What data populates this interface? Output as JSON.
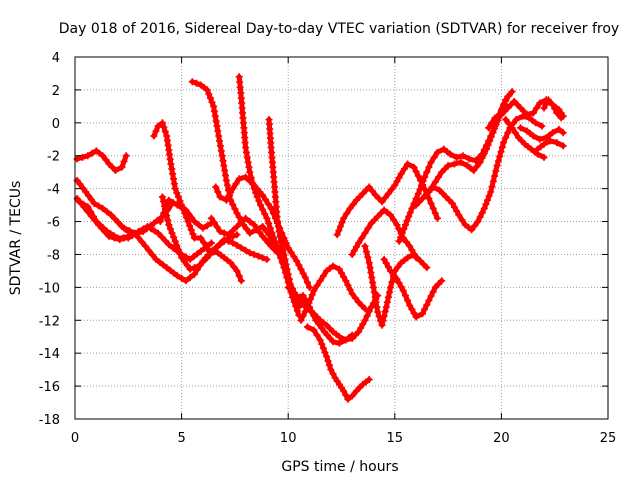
{
  "chart_data": {
    "type": "scatter",
    "title": "Day 018 of 2016, Sidereal Day-to-day VTEC variation (SDTVAR) for receiver froy",
    "xlabel": "GPS time / hours",
    "ylabel": "SDTVAR / TECUs",
    "xlim": [
      0,
      25
    ],
    "ylim": [
      -18,
      4
    ],
    "xticks": [
      0,
      5,
      10,
      15,
      20,
      25
    ],
    "yticks": [
      -18,
      -16,
      -14,
      -12,
      -10,
      -8,
      -6,
      -4,
      -2,
      0,
      2,
      4
    ],
    "grid": true,
    "marker": "plus",
    "color": "#ff0000",
    "series": [
      {
        "x": [
          0.1,
          0.6,
          1.0,
          1.3,
          1.6,
          1.9,
          2.2,
          2.4
        ],
        "y": [
          -2.2,
          -2.0,
          -1.7,
          -2.0,
          -2.5,
          -2.9,
          -2.7,
          -2.0
        ]
      },
      {
        "x": [
          0.1,
          0.5,
          0.9,
          1.3,
          1.7,
          2.2,
          2.7,
          3.2,
          3.7,
          4.2,
          4.5
        ],
        "y": [
          -3.5,
          -4.2,
          -4.9,
          -5.2,
          -5.6,
          -6.3,
          -6.8,
          -6.6,
          -6.1,
          -5.6,
          -5.0
        ]
      },
      {
        "x": [
          0.1,
          0.6,
          1.1,
          1.6,
          2.1,
          2.7,
          3.2
        ],
        "y": [
          -4.6,
          -5.4,
          -6.2,
          -6.9,
          -7.1,
          -6.8,
          -6.5
        ]
      },
      {
        "x": [
          0.2,
          0.6,
          1.0,
          1.5,
          2.0,
          2.5,
          3.0,
          3.4,
          3.9,
          4.4,
          5.0,
          5.4,
          5.9,
          6.4
        ],
        "y": [
          -4.8,
          -5.1,
          -6.0,
          -6.6,
          -7.0,
          -7.0,
          -6.6,
          -6.3,
          -6.7,
          -7.4,
          -8.0,
          -8.3,
          -7.8,
          -7.3
        ]
      },
      {
        "x": [
          3.7,
          3.9,
          4.1,
          4.3,
          4.5,
          4.7,
          5.0,
          5.3,
          5.6,
          5.9,
          6.3,
          6.7,
          7.0,
          7.3,
          7.6,
          7.8
        ],
        "y": [
          -0.8,
          -0.2,
          0.0,
          -0.8,
          -2.5,
          -4.0,
          -5.0,
          -6.0,
          -7.0,
          -7.0,
          -7.8,
          -7.9,
          -8.2,
          -8.5,
          -9.0,
          -9.6
        ]
      },
      {
        "x": [
          2.3,
          2.8,
          3.3,
          3.8,
          4.3,
          4.8,
          5.2,
          5.6,
          6.0,
          6.4,
          6.8,
          7.2,
          7.6
        ],
        "y": [
          -6.4,
          -6.7,
          -7.5,
          -8.3,
          -8.8,
          -9.3,
          -9.6,
          -9.2,
          -8.4,
          -7.8,
          -7.4,
          -7.0,
          -6.8
        ]
      },
      {
        "x": [
          4.0,
          4.4,
          4.8,
          5.2,
          5.6,
          6.0,
          6.4
        ],
        "y": [
          -6.0,
          -4.7,
          -5.0,
          -5.3,
          -6.0,
          -6.4,
          -6.1
        ]
      },
      {
        "x": [
          4.1,
          4.4,
          4.7,
          5.0,
          5.4,
          5.8,
          6.2,
          6.6,
          7.0,
          7.4,
          7.8,
          8.2,
          8.6,
          9.0
        ],
        "y": [
          -4.5,
          -6.2,
          -7.2,
          -8.2,
          -8.9,
          -8.7,
          -8.2,
          -7.6,
          -7.1,
          -7.3,
          -7.6,
          -7.9,
          -8.1,
          -8.3
        ]
      },
      {
        "x": [
          5.5,
          5.9,
          6.2,
          6.5,
          6.7,
          6.9,
          7.1,
          7.3,
          7.6,
          7.9,
          8.2,
          8.5,
          8.8,
          9.1,
          9.4
        ],
        "y": [
          2.5,
          2.3,
          2.0,
          1.0,
          -0.5,
          -2.0,
          -3.5,
          -4.7,
          -5.5,
          -6.2,
          -6.7,
          -6.5,
          -6.3,
          -6.8,
          -7.5
        ]
      },
      {
        "x": [
          6.4,
          6.8,
          7.2,
          7.6,
          8.0,
          8.4,
          8.8,
          9.2,
          9.5
        ],
        "y": [
          -5.8,
          -6.6,
          -6.8,
          -6.3,
          -5.8,
          -6.2,
          -6.9,
          -7.5,
          -7.9
        ]
      },
      {
        "x": [
          6.6,
          6.8,
          7.1,
          7.4,
          7.7,
          8.0,
          8.4,
          8.8,
          9.2,
          9.6,
          10.0,
          10.4,
          10.8,
          11.0
        ],
        "y": [
          -3.9,
          -4.5,
          -4.7,
          -4.0,
          -3.4,
          -3.3,
          -3.8,
          -4.4,
          -5.2,
          -6.4,
          -7.6,
          -8.4,
          -9.4,
          -10.0
        ]
      },
      {
        "x": [
          7.7,
          7.8,
          7.9,
          8.0,
          8.2,
          8.4,
          8.7,
          9.0,
          9.4,
          9.8,
          10.2,
          10.5
        ],
        "y": [
          2.8,
          1.5,
          0.0,
          -1.5,
          -3.0,
          -4.0,
          -5.0,
          -5.8,
          -7.3,
          -8.8,
          -10.6,
          -11.7
        ]
      },
      {
        "x": [
          9.1,
          9.2,
          9.3,
          9.4,
          9.5,
          9.7,
          9.9,
          10.1,
          10.3,
          10.5
        ],
        "y": [
          0.2,
          -1.5,
          -3.0,
          -4.5,
          -6.0,
          -7.5,
          -9.0,
          -10.0,
          -10.6,
          -11.2
        ]
      },
      {
        "x": [
          9.5,
          9.8,
          10.1,
          10.4,
          10.7,
          11.0,
          11.3,
          11.7,
          12.1,
          12.4,
          12.7,
          13.0
        ],
        "y": [
          -6.0,
          -8.0,
          -9.8,
          -10.6,
          -10.5,
          -11.2,
          -12.0,
          -12.7,
          -13.3,
          -13.4,
          -13.2,
          -12.9
        ]
      },
      {
        "x": [
          10.0,
          10.3,
          10.6,
          10.9,
          11.2,
          11.5,
          11.8,
          12.1,
          12.4,
          12.7,
          13.0,
          13.3,
          13.6,
          13.9,
          14.2
        ],
        "y": [
          -10.0,
          -10.4,
          -10.9,
          -11.3,
          -11.6,
          -12.0,
          -12.3,
          -12.7,
          -13.0,
          -13.2,
          -13.1,
          -12.7,
          -12.0,
          -11.2,
          -10.5
        ]
      },
      {
        "x": [
          10.9,
          11.2,
          11.5,
          11.8,
          12.0,
          12.2,
          12.4,
          12.6,
          12.8,
          13.0,
          13.2,
          13.5,
          13.8
        ],
        "y": [
          -12.4,
          -12.6,
          -13.2,
          -14.2,
          -15.0,
          -15.5,
          -15.9,
          -16.3,
          -16.8,
          -16.6,
          -16.3,
          -15.9,
          -15.6
        ]
      },
      {
        "x": [
          10.6,
          10.9,
          11.2,
          11.5,
          11.8,
          12.1,
          12.4,
          12.7,
          13.0,
          13.3,
          13.6
        ],
        "y": [
          -12.0,
          -11.2,
          -10.2,
          -9.6,
          -9.0,
          -8.7,
          -8.9,
          -9.6,
          -10.4,
          -10.9,
          -11.3
        ]
      },
      {
        "x": [
          12.3,
          12.6,
          12.9,
          13.2,
          13.5,
          13.8,
          14.1,
          14.4,
          14.7,
          15.0,
          15.3,
          15.6,
          15.9,
          16.2,
          16.5,
          16.8,
          17.0
        ],
        "y": [
          -6.8,
          -5.8,
          -5.2,
          -4.7,
          -4.3,
          -3.9,
          -4.4,
          -4.8,
          -4.3,
          -3.8,
          -3.1,
          -2.5,
          -2.7,
          -3.5,
          -4.3,
          -5.2,
          -5.8
        ]
      },
      {
        "x": [
          13.0,
          13.3,
          13.6,
          13.9,
          14.2,
          14.5,
          14.8,
          15.1,
          15.4,
          15.7,
          16.0
        ],
        "y": [
          -8.0,
          -7.3,
          -6.7,
          -6.1,
          -5.7,
          -5.3,
          -5.6,
          -6.2,
          -7.0,
          -7.5,
          -8.2
        ]
      },
      {
        "x": [
          13.6,
          13.8,
          14.0,
          14.2,
          14.4,
          14.6,
          14.8,
          15.0,
          15.3,
          15.6,
          15.9,
          16.2,
          16.5
        ],
        "y": [
          -7.5,
          -8.5,
          -10.0,
          -11.5,
          -12.3,
          -11.2,
          -10.0,
          -9.0,
          -8.5,
          -8.2,
          -8.0,
          -8.4,
          -8.8
        ]
      },
      {
        "x": [
          14.5,
          14.8,
          15.1,
          15.4,
          15.7,
          16.0,
          16.3,
          16.6,
          16.9,
          17.2
        ],
        "y": [
          -8.3,
          -9.0,
          -9.5,
          -10.2,
          -11.1,
          -11.8,
          -11.6,
          -10.8,
          -10.0,
          -9.6
        ]
      },
      {
        "x": [
          15.2,
          15.5,
          15.8,
          16.1,
          16.4,
          16.7,
          17.0,
          17.3,
          17.6,
          17.9,
          18.2,
          18.5,
          18.8,
          19.1,
          19.4,
          19.7,
          20.0,
          20.3
        ],
        "y": [
          -7.2,
          -6.2,
          -5.2,
          -4.3,
          -3.3,
          -2.4,
          -1.8,
          -1.6,
          -1.9,
          -2.1,
          -2.0,
          -2.2,
          -2.3,
          -1.9,
          -1.1,
          -0.2,
          0.8,
          1.6
        ]
      },
      {
        "x": [
          16.0,
          16.3,
          16.6,
          16.9,
          17.2,
          17.5,
          17.8,
          18.1,
          18.4,
          18.7,
          19.0,
          19.3,
          19.6,
          19.9,
          20.2,
          20.5
        ],
        "y": [
          -5.0,
          -4.6,
          -4.2,
          -3.6,
          -3.0,
          -2.6,
          -2.5,
          -2.4,
          -2.6,
          -2.9,
          -2.4,
          -1.6,
          -0.6,
          0.4,
          1.4,
          1.9
        ]
      },
      {
        "x": [
          16.5,
          16.8,
          17.1,
          17.4,
          17.7,
          18.0,
          18.3,
          18.6,
          18.9,
          19.2,
          19.5,
          19.8,
          20.1,
          20.4,
          20.7,
          21.0,
          21.3,
          21.6,
          21.9
        ],
        "y": [
          -4.3,
          -3.9,
          -4.1,
          -4.5,
          -4.9,
          -5.6,
          -6.2,
          -6.5,
          -6.0,
          -5.2,
          -4.2,
          -2.6,
          -1.2,
          -0.3,
          0.2,
          0.4,
          0.3,
          0.0,
          -0.2
        ]
      },
      {
        "x": [
          19.4,
          19.7,
          20.0,
          20.3,
          20.6,
          20.9,
          21.2,
          21.5,
          21.8,
          22.1,
          22.4,
          22.7,
          22.9
        ],
        "y": [
          -0.3,
          0.3,
          0.5,
          0.9,
          1.3,
          0.9,
          0.5,
          0.6,
          1.2,
          1.4,
          1.1,
          0.8,
          0.4
        ]
      },
      {
        "x": [
          20.9,
          21.2,
          21.5,
          21.8,
          22.1,
          22.4,
          22.7,
          22.9
        ],
        "y": [
          -0.3,
          -0.5,
          -0.8,
          -1.0,
          -0.9,
          -0.6,
          -0.4,
          -0.6
        ]
      },
      {
        "x": [
          20.2,
          20.5,
          20.8,
          21.1,
          21.4,
          21.7,
          22.0
        ],
        "y": [
          0.2,
          -0.3,
          -0.9,
          -1.3,
          -1.6,
          -1.9,
          -2.1
        ]
      },
      {
        "x": [
          21.7,
          22.0,
          22.3,
          22.6,
          22.9
        ],
        "y": [
          -1.6,
          -1.3,
          -1.1,
          -1.2,
          -1.4
        ]
      },
      {
        "x": [
          22.0,
          22.2,
          22.4,
          22.6,
          22.8
        ],
        "y": [
          0.9,
          1.4,
          1.1,
          0.6,
          0.3
        ]
      }
    ]
  }
}
